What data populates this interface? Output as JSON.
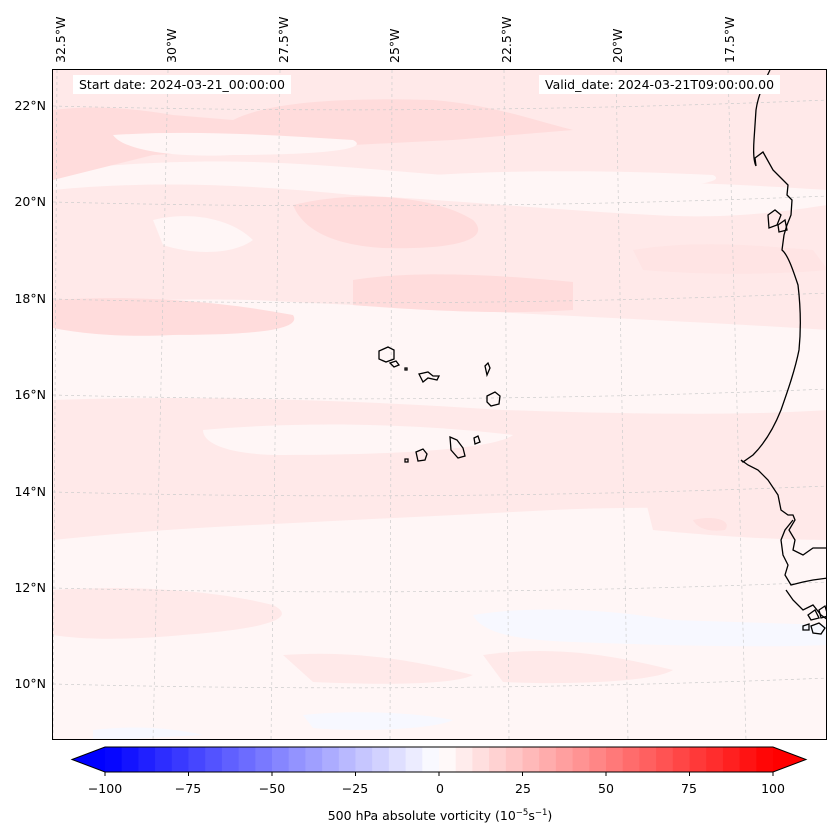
{
  "chart_data": {
    "type": "heatmap",
    "title": "",
    "map": {
      "projection": "conic",
      "lon_range": [
        -33,
        -14.5
      ],
      "lat_range": [
        8.8,
        22.8
      ],
      "gridlines": true,
      "coastlines": true
    },
    "lon_ticks": [
      "32.5°W",
      "30°W",
      "27.5°W",
      "25°W",
      "22.5°W",
      "20°W",
      "17.5°W"
    ],
    "lat_ticks": [
      "22°N",
      "20°N",
      "18°N",
      "16°N",
      "14°N",
      "12°N",
      "10°N"
    ],
    "annotations": {
      "start_date": "Start date: 2024-03-21_00:00:00",
      "valid_date": "Valid_date: 2024-03-21T09:00:00.00"
    },
    "colorbar": {
      "label_main": "500 hPa absolute vorticity (10",
      "label_exp1": "−5",
      "label_mid": "s",
      "label_exp2": "−1",
      "label_end": ")",
      "vmin": -100,
      "vmax": 100,
      "step": 5,
      "ticks": [
        "−100",
        "−75",
        "−50",
        "−25",
        "0",
        "25",
        "50",
        "75",
        "100"
      ],
      "extend": "both",
      "cmap": "bwr",
      "color_min": "#0000ff",
      "color_mid": "#ffffff",
      "color_max": "#ff0000"
    },
    "field_summary": {
      "dominant_range": [
        0,
        15
      ],
      "weak_negative_areas": "south-central and southeast near 12-13°N",
      "bands": "zonal streaks of weak positive vorticity, slightly stronger (10-15) near 17-21°N"
    }
  }
}
